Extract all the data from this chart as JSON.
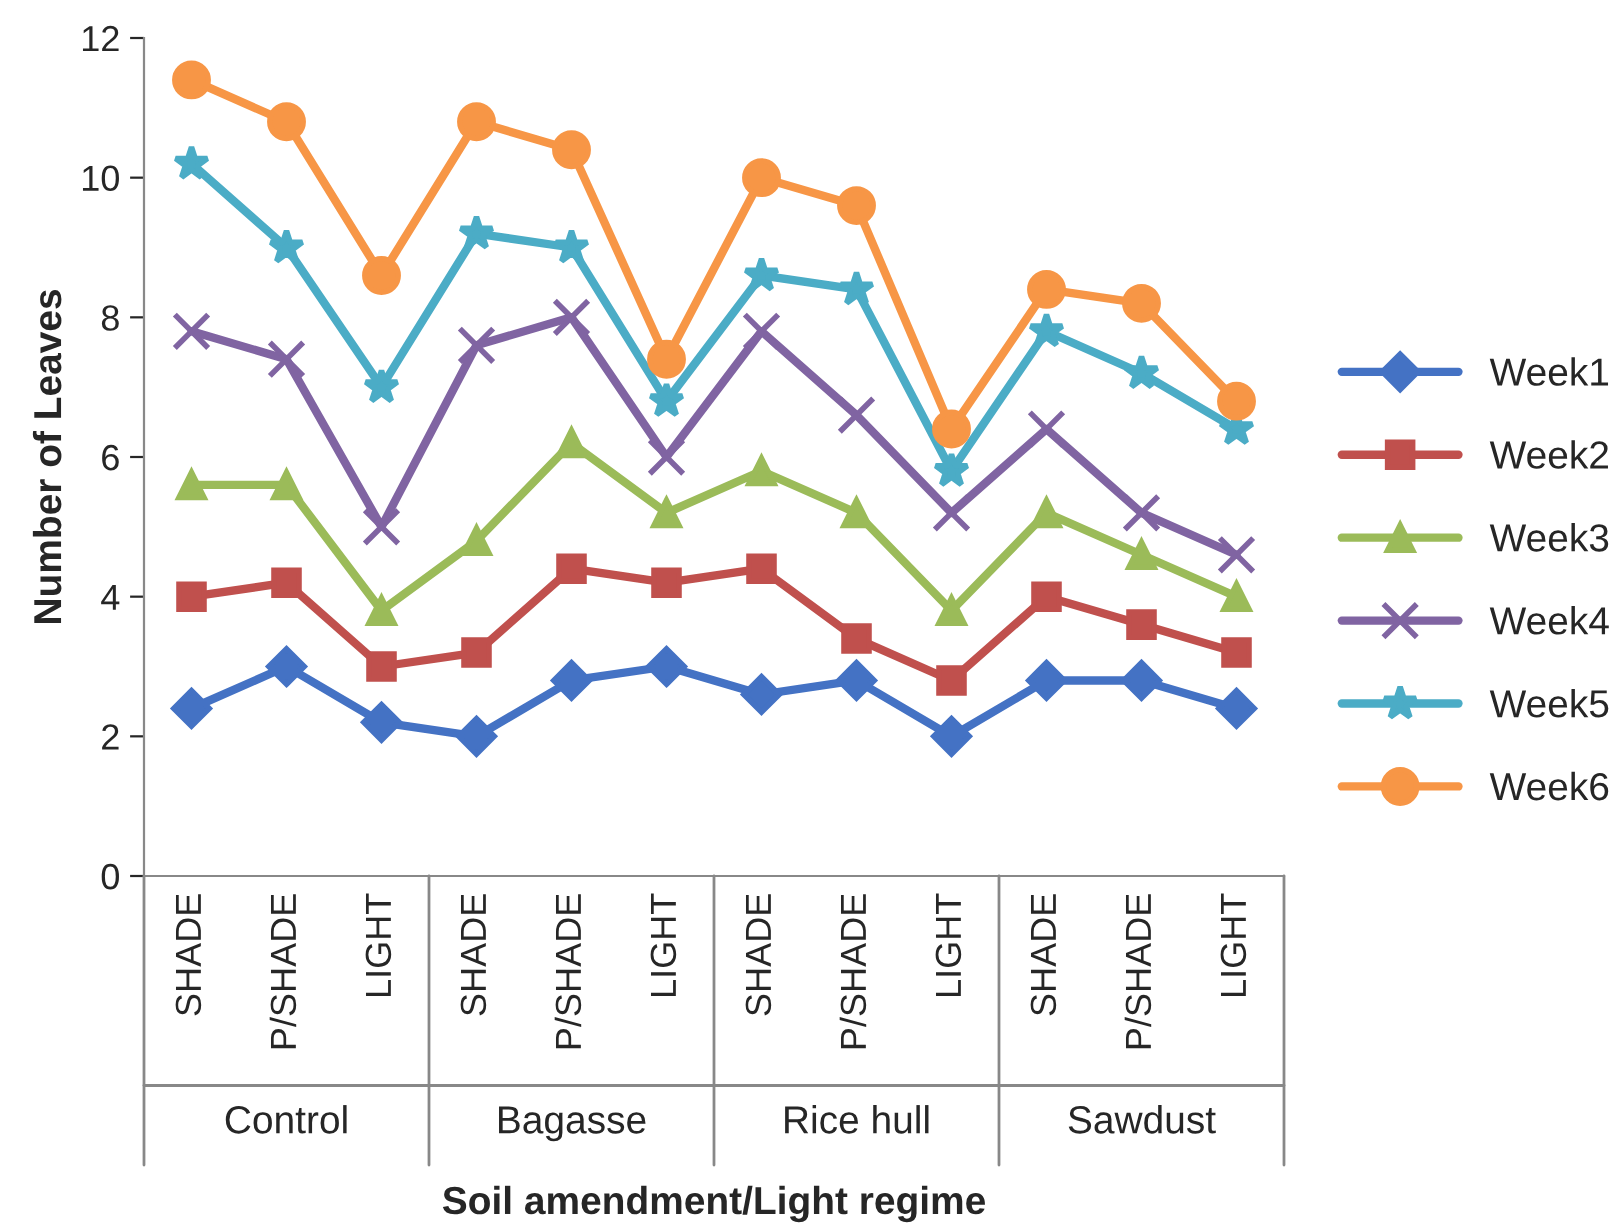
{
  "chart_data": {
    "type": "line",
    "xlabel": "Soil amendment/Light regime",
    "ylabel": "Number of Leaves",
    "categories": [
      "SHADE",
      "P/SHADE",
      "LIGHT",
      "SHADE",
      "P/SHADE",
      "LIGHT",
      "SHADE",
      "P/SHADE",
      "LIGHT",
      "SHADE",
      "P/SHADE",
      "LIGHT"
    ],
    "annotations": [
      "Control",
      "Bagasse",
      "Rice hull",
      "Sawdust"
    ],
    "ylim": [
      0,
      12
    ],
    "yticks": [
      0,
      2,
      4,
      6,
      8,
      10,
      12
    ],
    "grid": false,
    "legend": "right",
    "series": [
      {
        "name": "Week1",
        "color": "#4472c4",
        "marker": "diamond",
        "values": [
          2.4,
          3.0,
          2.2,
          2.0,
          2.8,
          3.0,
          2.6,
          2.8,
          2.0,
          2.8,
          2.8,
          2.4
        ]
      },
      {
        "name": "Week2",
        "color": "#c0504d",
        "marker": "square",
        "values": [
          4.0,
          4.2,
          3.0,
          3.2,
          4.4,
          4.2,
          4.4,
          3.4,
          2.8,
          4.0,
          3.6,
          3.2
        ]
      },
      {
        "name": "Week3",
        "color": "#9bbb59",
        "marker": "triangle",
        "values": [
          5.6,
          5.6,
          3.8,
          4.8,
          6.2,
          5.2,
          5.8,
          5.2,
          3.8,
          5.2,
          4.6,
          4.0
        ]
      },
      {
        "name": "Week4",
        "color": "#8064a2",
        "marker": "cross",
        "values": [
          7.8,
          7.4,
          5.0,
          7.6,
          8.0,
          6.0,
          7.8,
          6.6,
          5.2,
          6.4,
          5.2,
          4.6
        ]
      },
      {
        "name": "Week5",
        "color": "#4bacc6",
        "marker": "star",
        "values": [
          10.2,
          9.0,
          7.0,
          9.2,
          9.0,
          6.8,
          8.6,
          8.4,
          5.8,
          7.8,
          7.2,
          6.4
        ]
      },
      {
        "name": "Week6",
        "color": "#f79646",
        "marker": "circle",
        "values": [
          11.4,
          10.8,
          8.6,
          10.8,
          10.4,
          7.4,
          10.0,
          9.6,
          6.4,
          8.4,
          8.2,
          6.8
        ]
      }
    ]
  }
}
